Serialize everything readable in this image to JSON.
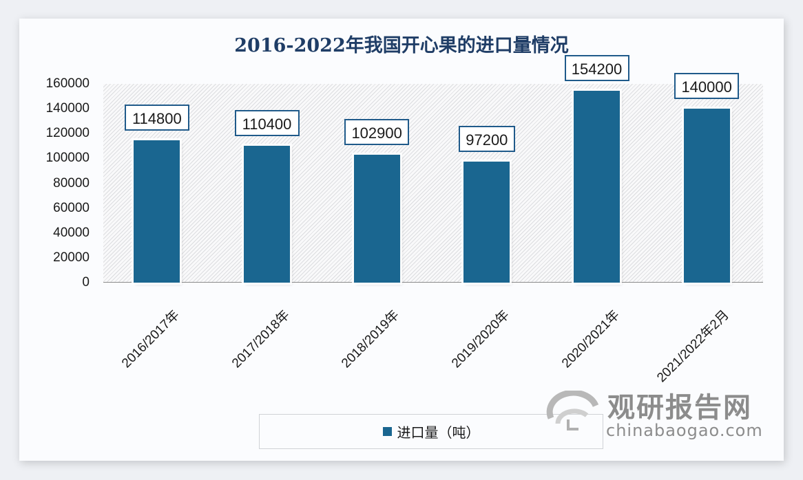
{
  "chart_data": {
    "type": "bar",
    "title": "2016-2022年我国开心果的进口量情况",
    "categories": [
      "2016/2017年",
      "2017/2018年",
      "2018/2019年",
      "2019/2020年",
      "2020/2021年",
      "2021/2022年2月"
    ],
    "series": [
      {
        "name": "进口量（吨）",
        "values": [
          114800,
          110400,
          102900,
          97200,
          154200,
          140000
        ],
        "color": "#1a6690"
      }
    ],
    "data_labels": [
      "114800",
      "110400",
      "102900",
      "97200",
      "154200",
      "140000"
    ],
    "xlabel": "",
    "ylabel": "",
    "ylim": [
      0,
      160000
    ],
    "yticks": [
      "160000",
      "140000",
      "120000",
      "100000",
      "80000",
      "60000",
      "40000",
      "20000",
      "0"
    ],
    "legend_position": "bottom",
    "grid": false
  },
  "legend": {
    "label": "进口量（吨）"
  },
  "watermark": {
    "cn": "观研报告网",
    "en": "chinabaogao.com"
  }
}
